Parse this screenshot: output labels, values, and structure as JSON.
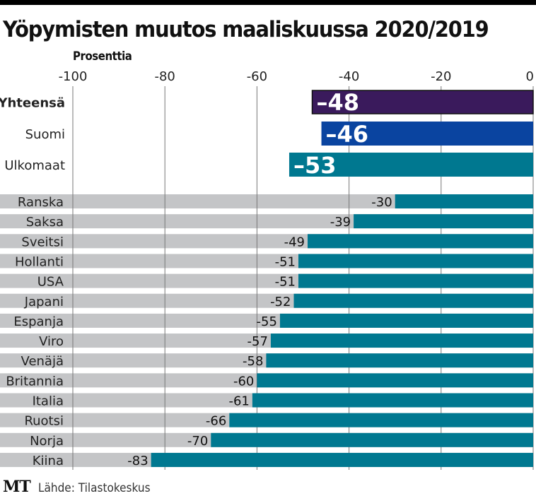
{
  "chart_data": {
    "type": "bar",
    "orientation": "horizontal",
    "title": "Yöpymisten muutos maaliskuussa 2020/2019",
    "xlabel": "Prosenttia",
    "ylabel": "",
    "xlim": [
      -100,
      0
    ],
    "x_ticks": [
      -100,
      -80,
      -60,
      -40,
      -20,
      0
    ],
    "x_tick_labels": [
      "-100",
      "-80",
      "-60",
      "-40",
      "-20",
      "0"
    ],
    "grid": true,
    "summary_series": {
      "categories": [
        "Yhteensä",
        "Suomi",
        "Ulkomaat"
      ],
      "values": [
        -48,
        -46,
        -53
      ],
      "labels": [
        "–48",
        "–46",
        "–53"
      ],
      "colors": [
        "#3a1a5c",
        "#0a44a0",
        "#007890"
      ]
    },
    "country_series": {
      "categories": [
        "Ranska",
        "Saksa",
        "Sveitsi",
        "Hollanti",
        "USA",
        "Japani",
        "Espanja",
        "Viro",
        "Venäjä",
        "Britannia",
        "Italia",
        "Ruotsi",
        "Norja",
        "Kiina"
      ],
      "values": [
        -30,
        -39,
        -49,
        -51,
        -51,
        -52,
        -55,
        -57,
        -58,
        -60,
        -61,
        -66,
        -70,
        -83
      ],
      "labels": [
        "-30",
        "-39",
        "-49",
        "-51",
        "-51",
        "-52",
        "-55",
        "-57",
        "-58",
        "-60",
        "-61",
        "-66",
        "-70",
        "-83"
      ],
      "color": "#007890",
      "stripe_color": "#c4c5c7"
    }
  },
  "footer": {
    "logo": "MT",
    "source": "Lähde: Tilastokeskus"
  }
}
